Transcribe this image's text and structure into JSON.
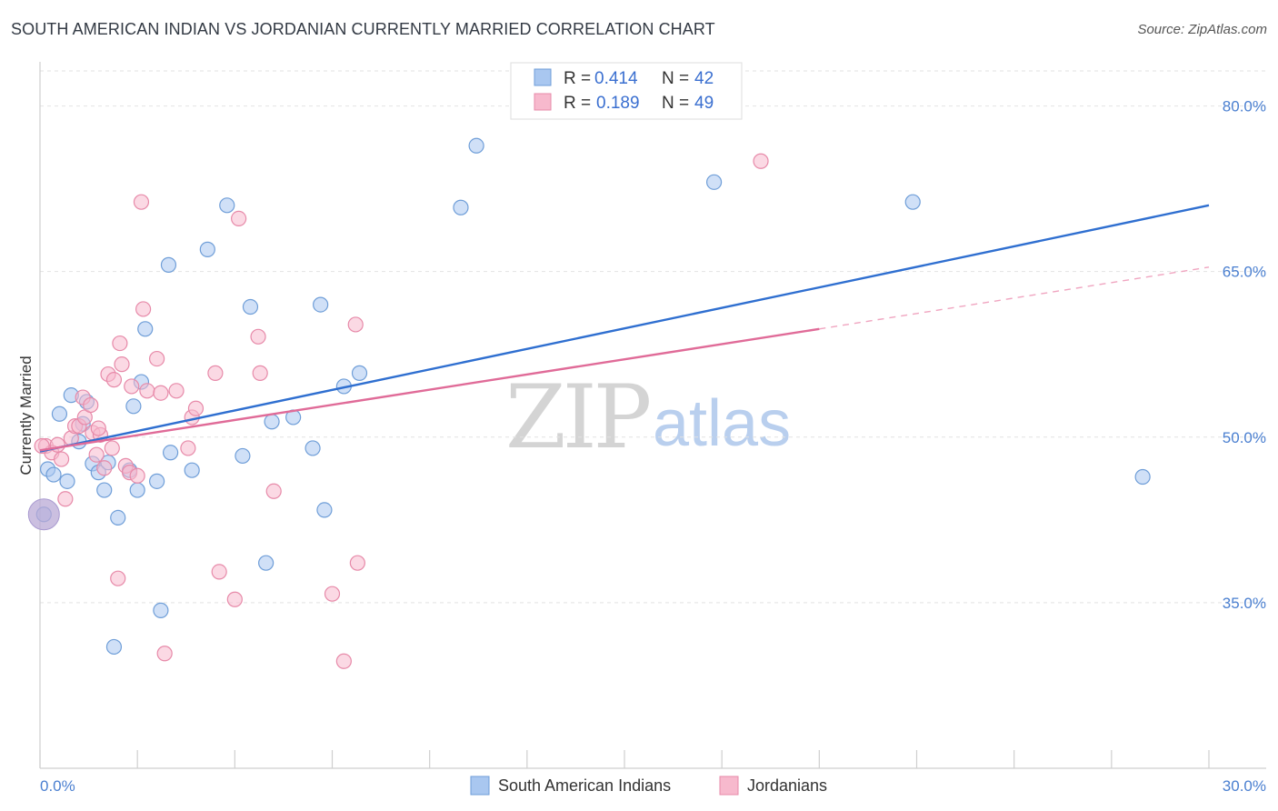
{
  "header": {
    "title": "SOUTH AMERICAN INDIAN VS JORDANIAN CURRENTLY MARRIED CORRELATION CHART",
    "source": "Source: ZipAtlas.com"
  },
  "watermark": {
    "zip": "ZIP",
    "atlas": "atlas"
  },
  "legend_top": [
    {
      "r_label": "R = ",
      "r_value": "0.414",
      "n_label": "N = ",
      "n_value": "42",
      "color": "#a9c7f0",
      "stroke": "#6f9ed8"
    },
    {
      "r_label": "R = ",
      "r_value": "0.189",
      "n_label": "N = ",
      "n_value": "49",
      "color": "#f7b9cd",
      "stroke": "#e78aa9"
    }
  ],
  "chart_data": {
    "type": "scatter",
    "title": "SOUTH AMERICAN INDIAN VS JORDANIAN CURRENTLY MARRIED CORRELATION CHART",
    "xlabel": "",
    "ylabel": "Currently Married",
    "xlim": [
      0,
      30
    ],
    "ylim": [
      20,
      84
    ],
    "x_tick_labels": [
      {
        "value": 0,
        "label": "0.0%"
      },
      {
        "value": 30,
        "label": "30.0%"
      }
    ],
    "y_tick_labels": [
      {
        "value": 80,
        "label": "80.0%"
      },
      {
        "value": 65,
        "label": "65.0%"
      },
      {
        "value": 50,
        "label": "50.0%"
      },
      {
        "value": 35,
        "label": "35.0%"
      }
    ],
    "grid": true,
    "legend_position": "bottom-center",
    "series": [
      {
        "name": "South American Indians",
        "color": "#a9c7f0",
        "stroke": "#6f9ed8",
        "trend": {
          "x": [
            0,
            30
          ],
          "y": [
            48.7,
            71.0
          ],
          "color": "#2f6fd0"
        },
        "points": [
          [
            0.2,
            47.1
          ],
          [
            0.35,
            46.6
          ],
          [
            0.5,
            52.1
          ],
          [
            0.7,
            46.0
          ],
          [
            0.8,
            53.8
          ],
          [
            1.0,
            49.6
          ],
          [
            1.1,
            51.2
          ],
          [
            1.2,
            53.2
          ],
          [
            1.35,
            47.6
          ],
          [
            1.5,
            46.8
          ],
          [
            1.65,
            45.2
          ],
          [
            1.75,
            47.7
          ],
          [
            2.0,
            42.7
          ],
          [
            2.4,
            52.8
          ],
          [
            2.5,
            45.2
          ],
          [
            2.6,
            55.0
          ],
          [
            2.7,
            59.8
          ],
          [
            3.0,
            46.0
          ],
          [
            3.1,
            34.3
          ],
          [
            3.3,
            65.6
          ],
          [
            3.35,
            48.6
          ],
          [
            3.9,
            47.0
          ],
          [
            4.3,
            67.0
          ],
          [
            4.8,
            71.0
          ],
          [
            5.2,
            48.3
          ],
          [
            5.4,
            61.8
          ],
          [
            5.8,
            38.6
          ],
          [
            5.95,
            51.4
          ],
          [
            6.5,
            51.8
          ],
          [
            7.0,
            49.0
          ],
          [
            7.2,
            62.0
          ],
          [
            7.3,
            43.4
          ],
          [
            7.8,
            54.6
          ],
          [
            8.2,
            55.8
          ],
          [
            10.8,
            70.8
          ],
          [
            11.2,
            76.4
          ],
          [
            1.9,
            31.0
          ],
          [
            17.3,
            73.1
          ],
          [
            22.4,
            71.3
          ],
          [
            28.3,
            46.4
          ],
          [
            0.1,
            43.0
          ],
          [
            2.3,
            47.0
          ]
        ]
      },
      {
        "name": "Jordanians",
        "color": "#f7b9cd",
        "stroke": "#e78aa9",
        "trend": {
          "x": [
            0,
            20.0
          ],
          "y": [
            48.8,
            59.8
          ],
          "color": "#e06b98"
        },
        "trend_dashed": {
          "x": [
            20.0,
            30
          ],
          "y": [
            59.8,
            65.4
          ],
          "color": "#f0a5c0"
        },
        "points": [
          [
            0.15,
            49.2
          ],
          [
            0.3,
            48.6
          ],
          [
            0.45,
            49.3
          ],
          [
            0.55,
            48.0
          ],
          [
            0.65,
            44.4
          ],
          [
            0.8,
            49.9
          ],
          [
            0.9,
            51.0
          ],
          [
            1.0,
            51.0
          ],
          [
            1.1,
            53.6
          ],
          [
            1.15,
            51.8
          ],
          [
            1.3,
            52.9
          ],
          [
            1.35,
            50.4
          ],
          [
            1.45,
            48.4
          ],
          [
            1.55,
            50.2
          ],
          [
            1.65,
            47.2
          ],
          [
            1.75,
            55.7
          ],
          [
            1.85,
            49.0
          ],
          [
            1.9,
            55.2
          ],
          [
            2.0,
            37.2
          ],
          [
            2.05,
            58.5
          ],
          [
            2.1,
            56.6
          ],
          [
            2.2,
            47.4
          ],
          [
            2.3,
            46.8
          ],
          [
            2.35,
            54.6
          ],
          [
            2.5,
            46.5
          ],
          [
            2.6,
            71.3
          ],
          [
            2.65,
            61.6
          ],
          [
            2.75,
            54.2
          ],
          [
            3.0,
            57.1
          ],
          [
            3.1,
            54.0
          ],
          [
            3.2,
            30.4
          ],
          [
            3.5,
            54.2
          ],
          [
            3.8,
            49.0
          ],
          [
            3.9,
            51.8
          ],
          [
            4.0,
            52.6
          ],
          [
            4.5,
            55.8
          ],
          [
            4.6,
            37.8
          ],
          [
            5.0,
            35.3
          ],
          [
            5.1,
            69.8
          ],
          [
            5.6,
            59.1
          ],
          [
            5.65,
            55.8
          ],
          [
            6.0,
            45.1
          ],
          [
            7.5,
            35.8
          ],
          [
            7.8,
            29.7
          ],
          [
            8.1,
            60.2
          ],
          [
            8.15,
            38.6
          ],
          [
            18.5,
            75.0
          ],
          [
            0.05,
            49.2
          ],
          [
            1.5,
            50.8
          ]
        ]
      }
    ],
    "highlight_point": {
      "x": 0.1,
      "y": 43.0,
      "color": "#b9a9d6"
    }
  }
}
